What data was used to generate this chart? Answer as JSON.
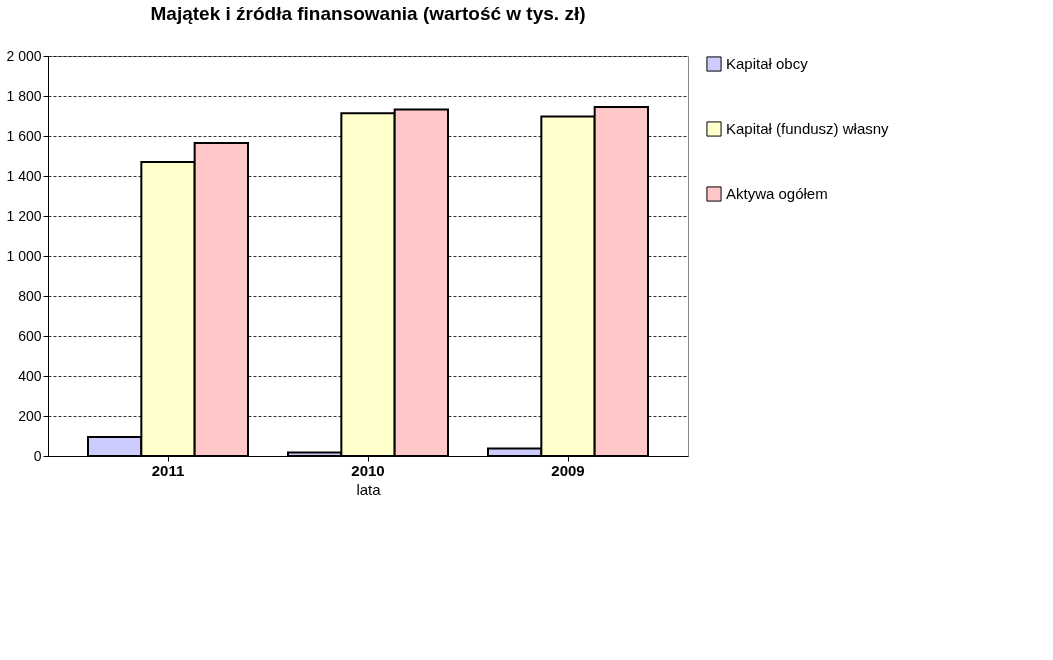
{
  "chart_data": {
    "type": "bar",
    "title": "Majątek i źródła finansowania (wartość w tys. zł)",
    "xlabel": "lata",
    "categories": [
      "2011",
      "2010",
      "2009"
    ],
    "series": [
      {
        "name": "Kapitał obcy",
        "color": "#ccccff",
        "values": [
          95,
          18,
          38
        ]
      },
      {
        "name": "Kapitał (fundusz) własny",
        "color": "#ffffcc",
        "values": [
          1470,
          1714,
          1698
        ]
      },
      {
        "name": "Aktywa ogółem",
        "color": "#ffc8c8",
        "values": [
          1565,
          1732,
          1745
        ]
      }
    ],
    "ylim": [
      0,
      2000
    ],
    "yticks": [
      0,
      200,
      400,
      600,
      800,
      {
        "value": 1000,
        "label": "1 000"
      },
      {
        "value": 1200,
        "label": "1 200"
      },
      {
        "value": 1400,
        "label": "1 400"
      },
      {
        "value": 1600,
        "label": "1 600"
      },
      {
        "value": 1800,
        "label": "1 800"
      },
      {
        "value": 2000,
        "label": "2 000"
      }
    ],
    "grid": "y",
    "legend": "right"
  }
}
